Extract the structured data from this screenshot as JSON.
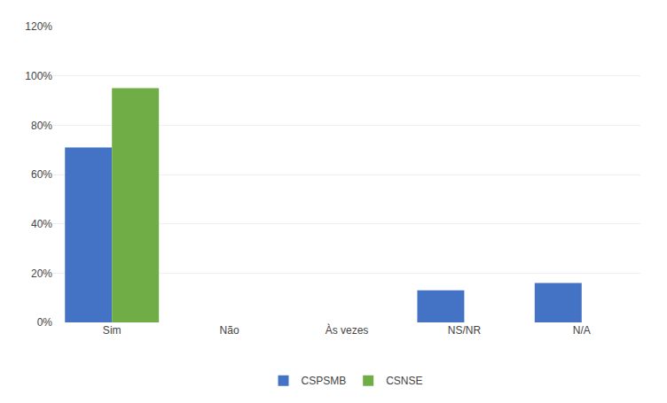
{
  "chart_data": {
    "type": "bar",
    "categories": [
      "Sim",
      "Não",
      "Às vezes",
      "NS/NR",
      "N/A"
    ],
    "series": [
      {
        "name": "CSPSMB",
        "color": "#4472C4",
        "values": [
          0.71,
          0.0,
          0.0,
          0.13,
          0.16
        ]
      },
      {
        "name": "CSNSE",
        "color": "#70AD47",
        "values": [
          0.95,
          0.0,
          0.0,
          0.0,
          0.0
        ]
      }
    ],
    "ylim": [
      0,
      1.2
    ],
    "yticks": [
      {
        "value": 0.0,
        "label": "0%"
      },
      {
        "value": 0.2,
        "label": "20%"
      },
      {
        "value": 0.4,
        "label": "40%"
      },
      {
        "value": 0.6,
        "label": "60%"
      },
      {
        "value": 0.8,
        "label": "80%"
      },
      {
        "value": 1.0,
        "label": "100%"
      },
      {
        "value": 1.2,
        "label": "120%"
      }
    ],
    "grid": true,
    "legend": "bottom"
  }
}
